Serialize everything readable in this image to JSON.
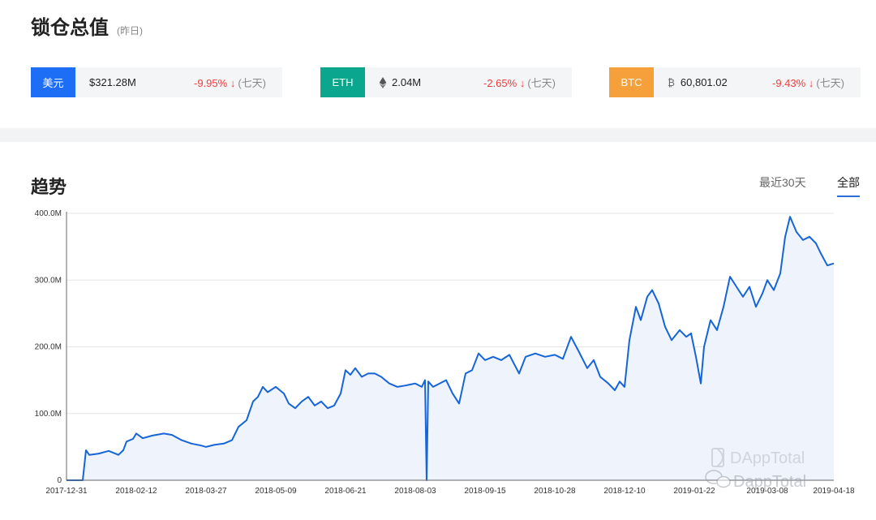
{
  "header": {
    "title": "锁仓总值",
    "subtitle": "(昨日)"
  },
  "stats": [
    {
      "tag": "美元",
      "tag_color": "#1e6ef5",
      "value": "$321.28M",
      "change": "-9.95% ↓",
      "period": "(七天)",
      "icon": "none"
    },
    {
      "tag": "ETH",
      "tag_color": "#0aa68d",
      "value": "2.04M",
      "change": "-2.65% ↓",
      "period": "(七天)",
      "icon": "eth-icon"
    },
    {
      "tag": "BTC",
      "tag_color": "#f5a03a",
      "value": "60,801.02",
      "change": "-9.43% ↓",
      "period": "(七天)",
      "icon": "btc-icon"
    }
  ],
  "trend": {
    "title": "趋势",
    "ranges": [
      "最近30天",
      "全部"
    ],
    "selected": "全部"
  },
  "watermark": {
    "brand": "DAppTotal",
    "wechat": "DappTotal"
  },
  "colors": {
    "line": "#1565d8",
    "area": "#eef3fc",
    "down": "#f03d3d"
  },
  "chart_data": {
    "type": "area",
    "ylim": [
      0,
      400
    ],
    "yticks": [
      "0",
      "100.0M",
      "200.0M",
      "300.0M",
      "400.0M"
    ],
    "xticks": [
      "2017-12-31",
      "2018-02-12",
      "2018-03-27",
      "2018-05-09",
      "2018-06-21",
      "2018-08-03",
      "2018-09-15",
      "2018-10-28",
      "2018-12-10",
      "2019-01-22",
      "2019-03-08",
      "2019-04-18"
    ],
    "series": [
      {
        "unit": "M USD",
        "points": [
          [
            "2017-12-31",
            0
          ],
          [
            "2018-01-05",
            0
          ],
          [
            "2018-01-10",
            0
          ],
          [
            "2018-01-12",
            45
          ],
          [
            "2018-01-14",
            38
          ],
          [
            "2018-01-20",
            40
          ],
          [
            "2018-01-26",
            44
          ],
          [
            "2018-02-01",
            38
          ],
          [
            "2018-02-04",
            45
          ],
          [
            "2018-02-06",
            58
          ],
          [
            "2018-02-10",
            62
          ],
          [
            "2018-02-12",
            70
          ],
          [
            "2018-02-16",
            63
          ],
          [
            "2018-02-22",
            67
          ],
          [
            "2018-03-01",
            70
          ],
          [
            "2018-03-06",
            68
          ],
          [
            "2018-03-12",
            60
          ],
          [
            "2018-03-18",
            55
          ],
          [
            "2018-03-24",
            52
          ],
          [
            "2018-03-27",
            50
          ],
          [
            "2018-04-01",
            53
          ],
          [
            "2018-04-07",
            55
          ],
          [
            "2018-04-12",
            60
          ],
          [
            "2018-04-16",
            80
          ],
          [
            "2018-04-21",
            90
          ],
          [
            "2018-04-25",
            118
          ],
          [
            "2018-04-28",
            125
          ],
          [
            "2018-05-01",
            140
          ],
          [
            "2018-05-04",
            132
          ],
          [
            "2018-05-09",
            140
          ],
          [
            "2018-05-14",
            130
          ],
          [
            "2018-05-17",
            115
          ],
          [
            "2018-05-21",
            108
          ],
          [
            "2018-05-25",
            118
          ],
          [
            "2018-05-29",
            125
          ],
          [
            "2018-06-02",
            112
          ],
          [
            "2018-06-06",
            118
          ],
          [
            "2018-06-10",
            108
          ],
          [
            "2018-06-14",
            112
          ],
          [
            "2018-06-18",
            130
          ],
          [
            "2018-06-21",
            165
          ],
          [
            "2018-06-24",
            158
          ],
          [
            "2018-06-27",
            168
          ],
          [
            "2018-07-01",
            155
          ],
          [
            "2018-07-05",
            160
          ],
          [
            "2018-07-09",
            160
          ],
          [
            "2018-07-13",
            155
          ],
          [
            "2018-07-18",
            145
          ],
          [
            "2018-07-23",
            140
          ],
          [
            "2018-07-28",
            142
          ],
          [
            "2018-08-03",
            145
          ],
          [
            "2018-08-07",
            140
          ],
          [
            "2018-08-09",
            150
          ],
          [
            "2018-08-10",
            0
          ],
          [
            "2018-08-11",
            148
          ],
          [
            "2018-08-14",
            140
          ],
          [
            "2018-08-18",
            145
          ],
          [
            "2018-08-22",
            150
          ],
          [
            "2018-08-26",
            130
          ],
          [
            "2018-08-30",
            115
          ],
          [
            "2018-09-03",
            160
          ],
          [
            "2018-09-07",
            165
          ],
          [
            "2018-09-11",
            190
          ],
          [
            "2018-09-15",
            180
          ],
          [
            "2018-09-20",
            185
          ],
          [
            "2018-09-25",
            180
          ],
          [
            "2018-09-30",
            188
          ],
          [
            "2018-10-06",
            160
          ],
          [
            "2018-10-10",
            185
          ],
          [
            "2018-10-16",
            190
          ],
          [
            "2018-10-22",
            185
          ],
          [
            "2018-10-28",
            188
          ],
          [
            "2018-11-02",
            182
          ],
          [
            "2018-11-07",
            215
          ],
          [
            "2018-11-12",
            192
          ],
          [
            "2018-11-17",
            168
          ],
          [
            "2018-11-21",
            180
          ],
          [
            "2018-11-25",
            155
          ],
          [
            "2018-11-30",
            145
          ],
          [
            "2018-12-04",
            135
          ],
          [
            "2018-12-07",
            148
          ],
          [
            "2018-12-10",
            140
          ],
          [
            "2018-12-13",
            210
          ],
          [
            "2018-12-17",
            260
          ],
          [
            "2018-12-20",
            240
          ],
          [
            "2018-12-24",
            275
          ],
          [
            "2018-12-27",
            285
          ],
          [
            "2018-12-31",
            265
          ],
          [
            "2019-01-04",
            230
          ],
          [
            "2019-01-08",
            210
          ],
          [
            "2019-01-13",
            225
          ],
          [
            "2019-01-17",
            215
          ],
          [
            "2019-01-20",
            220
          ],
          [
            "2019-01-23",
            185
          ],
          [
            "2019-01-26",
            145
          ],
          [
            "2019-01-28",
            200
          ],
          [
            "2019-02-01",
            240
          ],
          [
            "2019-02-05",
            225
          ],
          [
            "2019-02-09",
            260
          ],
          [
            "2019-02-13",
            305
          ],
          [
            "2019-02-17",
            290
          ],
          [
            "2019-02-21",
            275
          ],
          [
            "2019-02-25",
            290
          ],
          [
            "2019-03-01",
            260
          ],
          [
            "2019-03-05",
            280
          ],
          [
            "2019-03-08",
            300
          ],
          [
            "2019-03-12",
            285
          ],
          [
            "2019-03-16",
            310
          ],
          [
            "2019-03-19",
            365
          ],
          [
            "2019-03-22",
            395
          ],
          [
            "2019-03-26",
            372
          ],
          [
            "2019-03-30",
            360
          ],
          [
            "2019-04-03",
            365
          ],
          [
            "2019-04-07",
            355
          ],
          [
            "2019-04-10",
            340
          ],
          [
            "2019-04-14",
            322
          ],
          [
            "2019-04-18",
            325
          ]
        ]
      }
    ]
  }
}
